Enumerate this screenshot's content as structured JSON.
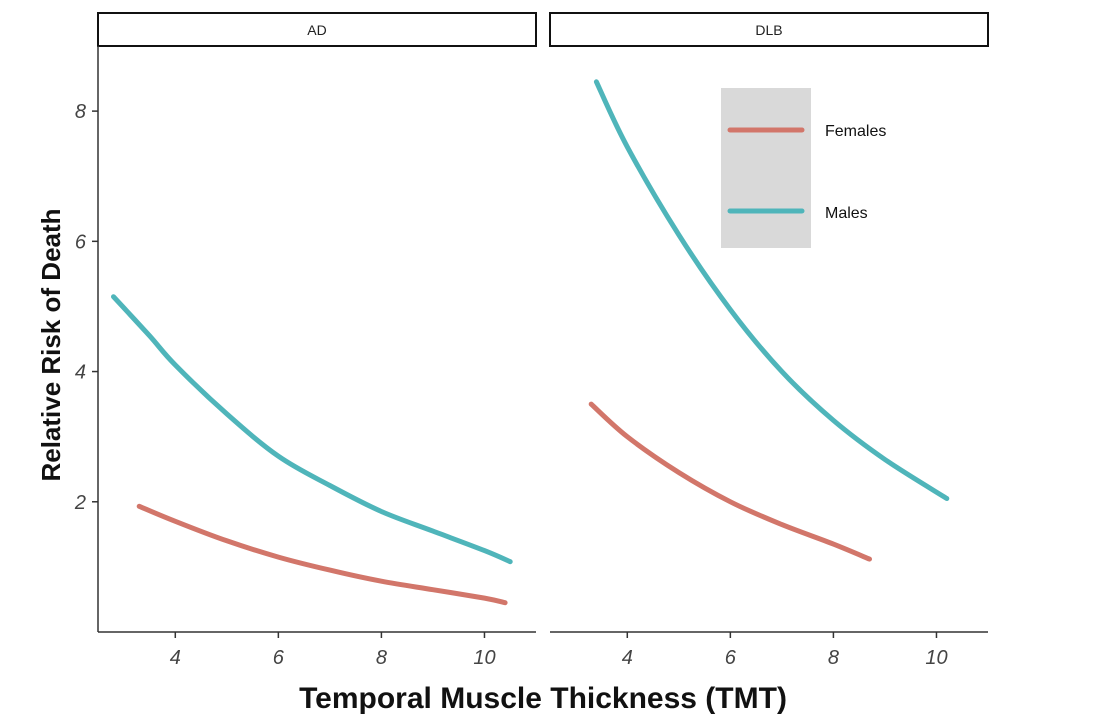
{
  "chart_data": {
    "type": "line",
    "xlabel": "Temporal Muscle Thickness (TMT)",
    "ylabel": "Relative Risk of Death",
    "x_ticks": [
      4,
      6,
      8,
      10
    ],
    "y_ticks": [
      2,
      4,
      6,
      8
    ],
    "xlim": [
      2.5,
      11.0
    ],
    "ylim": [
      0,
      9
    ],
    "grid": false,
    "legend_position": "top-right",
    "legend": [
      {
        "name": "Females",
        "color": "#D2766A"
      },
      {
        "name": "Males",
        "color": "#4FB5BA"
      }
    ],
    "panels": [
      {
        "label": "AD",
        "series": [
          {
            "name": "Males",
            "color": "#4FB5BA",
            "x": [
              2.8,
              3.5,
              4.0,
              5.0,
              6.0,
              7.0,
              8.0,
              9.0,
              10.0,
              10.5
            ],
            "y": [
              5.15,
              4.55,
              4.1,
              3.35,
              2.7,
              2.25,
              1.85,
              1.55,
              1.25,
              1.08
            ]
          },
          {
            "name": "Females",
            "color": "#D2766A",
            "x": [
              3.3,
              4.0,
              5.0,
              6.0,
              7.0,
              8.0,
              9.0,
              10.0,
              10.4
            ],
            "y": [
              1.93,
              1.7,
              1.4,
              1.15,
              0.95,
              0.78,
              0.65,
              0.52,
              0.45
            ]
          }
        ]
      },
      {
        "label": "DLB",
        "series": [
          {
            "name": "Males",
            "color": "#4FB5BA",
            "x": [
              3.4,
              4.0,
              5.0,
              6.0,
              7.0,
              8.0,
              9.0,
              10.2
            ],
            "y": [
              8.45,
              7.45,
              6.1,
              4.95,
              4.0,
              3.25,
              2.65,
              2.05
            ]
          },
          {
            "name": "Females",
            "color": "#D2766A",
            "x": [
              3.3,
              4.0,
              5.0,
              6.0,
              7.0,
              8.0,
              8.7
            ],
            "y": [
              3.5,
              3.0,
              2.45,
              2.0,
              1.65,
              1.35,
              1.12
            ]
          }
        ]
      }
    ]
  }
}
